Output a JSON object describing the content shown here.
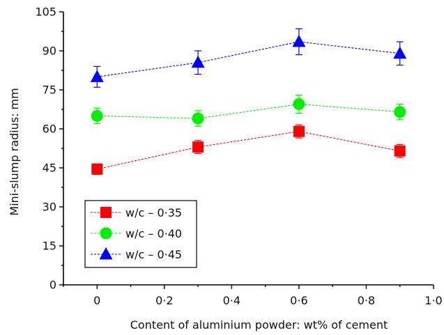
{
  "chart_data": {
    "type": "line",
    "xlabel": "Content of aluminium powder: wt% of cement",
    "ylabel": "Mini-slump radius: mm",
    "xlim": [
      -0.1,
      1.0
    ],
    "ylim": [
      0,
      105
    ],
    "x_ticks": [
      0,
      0.2,
      0.4,
      0.6,
      0.8,
      1.0
    ],
    "x_tick_labels": [
      "0",
      "0·2",
      "0·4",
      "0·6",
      "0·8",
      "1·0"
    ],
    "y_ticks": [
      0,
      15,
      30,
      45,
      60,
      75,
      90,
      105
    ],
    "y_tick_labels": [
      "0",
      "15",
      "30",
      "45",
      "60",
      "75",
      "90",
      "105"
    ],
    "grid": false,
    "legend_position": "bottom-left",
    "x": [
      0,
      0.3,
      0.6,
      0.9
    ],
    "series": [
      {
        "name": "w/c – 0·35",
        "color": "#ff0000",
        "marker": "square",
        "values": [
          44.5,
          53,
          59,
          51.5
        ],
        "error": [
          2.0,
          2.5,
          2.5,
          2.5
        ]
      },
      {
        "name": "w/c – 0·40",
        "color": "#00ee00",
        "marker": "circle",
        "values": [
          65,
          64,
          69.5,
          66.5
        ],
        "error": [
          3.0,
          3.0,
          3.5,
          3.0
        ]
      },
      {
        "name": "w/c – 0·45",
        "color": "#0000ff",
        "marker": "triangle",
        "values": [
          80,
          85.5,
          93.5,
          89
        ],
        "error": [
          4.0,
          4.5,
          5.0,
          4.5
        ]
      }
    ]
  }
}
